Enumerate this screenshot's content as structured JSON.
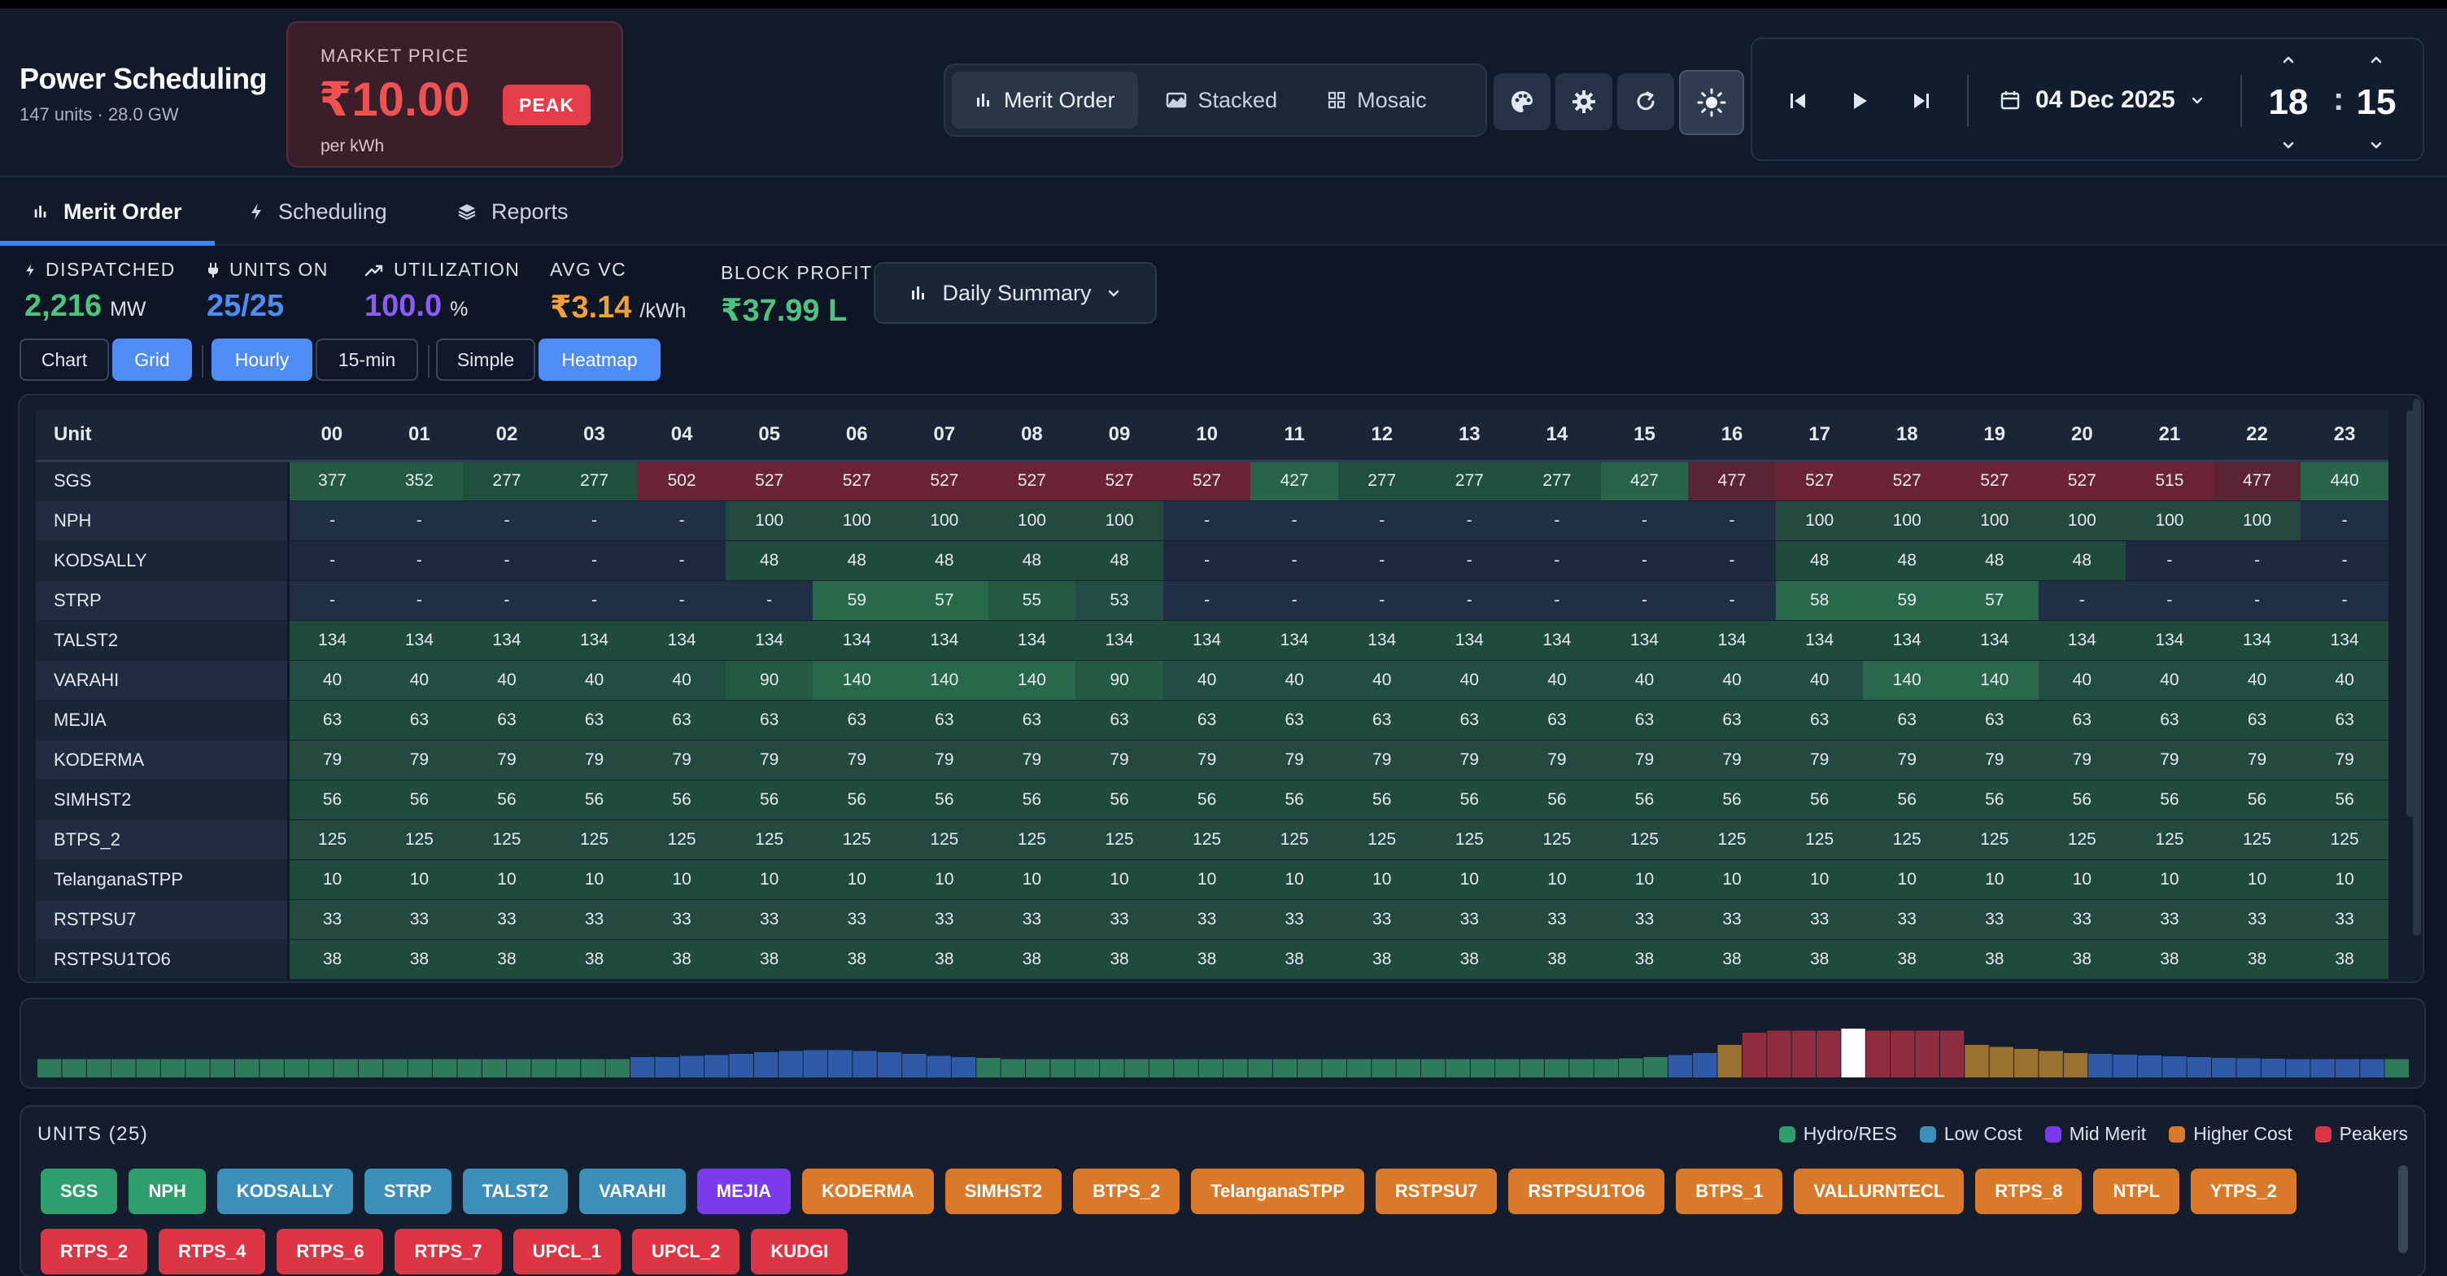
{
  "header": {
    "title": "Power Scheduling",
    "subtitle": "147 units · 28.0 GW",
    "market_label": "MARKET PRICE",
    "market_price": "₹10.00",
    "market_badge": "PEAK",
    "market_unit": "per kWh",
    "views": [
      {
        "label": "Merit Order",
        "icon": "bar-chart-icon"
      },
      {
        "label": "Stacked",
        "icon": "area-chart-icon"
      },
      {
        "label": "Mosaic",
        "icon": "grid-icon"
      }
    ],
    "date": "04 Dec 2025",
    "hour": "18",
    "minute": "15"
  },
  "tabs": [
    {
      "label": "Merit Order",
      "icon": "bar-chart-icon"
    },
    {
      "label": "Scheduling",
      "icon": "bolt-icon"
    },
    {
      "label": "Reports",
      "icon": "layers-icon"
    }
  ],
  "stats": {
    "dispatched_label": "DISPATCHED",
    "dispatched_value": "2,216",
    "dispatched_unit": "MW",
    "units_on_label": "UNITS ON",
    "units_on_value": "25/25",
    "utilization_label": "UTILIZATION",
    "utilization_value": "100.0",
    "utilization_unit": "%",
    "avg_vc_label": "AVG VC",
    "avg_vc_value": "₹3.14",
    "avg_vc_unit": "/kWh",
    "block_profit_label": "BLOCK PROFIT",
    "block_profit_value": "₹37.99 L",
    "summary_label": "Daily Summary"
  },
  "toggles": {
    "chart": "Chart",
    "grid": "Grid",
    "hourly": "Hourly",
    "quarter": "15-min",
    "simple": "Simple",
    "heatmap": "Heatmap"
  },
  "grid": {
    "unit_header": "Unit",
    "hours": [
      "00",
      "01",
      "02",
      "03",
      "04",
      "05",
      "06",
      "07",
      "08",
      "09",
      "10",
      "11",
      "12",
      "13",
      "14",
      "15",
      "16",
      "17",
      "18",
      "19",
      "20",
      "21",
      "22",
      "23"
    ],
    "rows": [
      {
        "unit": "SGS",
        "values": [
          "377",
          "352",
          "277",
          "277",
          "502",
          "527",
          "527",
          "527",
          "527",
          "527",
          "527",
          "427",
          "277",
          "277",
          "277",
          "427",
          "477",
          "527",
          "527",
          "527",
          "527",
          "515",
          "477",
          "440"
        ]
      },
      {
        "unit": "NPH",
        "values": [
          "-",
          "-",
          "-",
          "-",
          "-",
          "100",
          "100",
          "100",
          "100",
          "100",
          "-",
          "-",
          "-",
          "-",
          "-",
          "-",
          "-",
          "100",
          "100",
          "100",
          "100",
          "100",
          "100",
          "-"
        ]
      },
      {
        "unit": "KODSALLY",
        "values": [
          "-",
          "-",
          "-",
          "-",
          "-",
          "48",
          "48",
          "48",
          "48",
          "48",
          "-",
          "-",
          "-",
          "-",
          "-",
          "-",
          "-",
          "48",
          "48",
          "48",
          "48",
          "-",
          "-",
          "-"
        ]
      },
      {
        "unit": "STRP",
        "values": [
          "-",
          "-",
          "-",
          "-",
          "-",
          "-",
          "59",
          "57",
          "55",
          "53",
          "-",
          "-",
          "-",
          "-",
          "-",
          "-",
          "-",
          "58",
          "59",
          "57",
          "-",
          "-",
          "-",
          "-"
        ]
      },
      {
        "unit": "TALST2",
        "values": [
          "134",
          "134",
          "134",
          "134",
          "134",
          "134",
          "134",
          "134",
          "134",
          "134",
          "134",
          "134",
          "134",
          "134",
          "134",
          "134",
          "134",
          "134",
          "134",
          "134",
          "134",
          "134",
          "134",
          "134"
        ]
      },
      {
        "unit": "VARAHI",
        "values": [
          "40",
          "40",
          "40",
          "40",
          "40",
          "90",
          "140",
          "140",
          "140",
          "90",
          "40",
          "40",
          "40",
          "40",
          "40",
          "40",
          "40",
          "40",
          "140",
          "140",
          "40",
          "40",
          "40",
          "40"
        ]
      },
      {
        "unit": "MEJIA",
        "values": [
          "63",
          "63",
          "63",
          "63",
          "63",
          "63",
          "63",
          "63",
          "63",
          "63",
          "63",
          "63",
          "63",
          "63",
          "63",
          "63",
          "63",
          "63",
          "63",
          "63",
          "63",
          "63",
          "63",
          "63"
        ]
      },
      {
        "unit": "KODERMA",
        "values": [
          "79",
          "79",
          "79",
          "79",
          "79",
          "79",
          "79",
          "79",
          "79",
          "79",
          "79",
          "79",
          "79",
          "79",
          "79",
          "79",
          "79",
          "79",
          "79",
          "79",
          "79",
          "79",
          "79",
          "79"
        ]
      },
      {
        "unit": "SIMHST2",
        "values": [
          "56",
          "56",
          "56",
          "56",
          "56",
          "56",
          "56",
          "56",
          "56",
          "56",
          "56",
          "56",
          "56",
          "56",
          "56",
          "56",
          "56",
          "56",
          "56",
          "56",
          "56",
          "56",
          "56",
          "56"
        ]
      },
      {
        "unit": "BTPS_2",
        "values": [
          "125",
          "125",
          "125",
          "125",
          "125",
          "125",
          "125",
          "125",
          "125",
          "125",
          "125",
          "125",
          "125",
          "125",
          "125",
          "125",
          "125",
          "125",
          "125",
          "125",
          "125",
          "125",
          "125",
          "125"
        ]
      },
      {
        "unit": "TelanganaSTPP",
        "values": [
          "10",
          "10",
          "10",
          "10",
          "10",
          "10",
          "10",
          "10",
          "10",
          "10",
          "10",
          "10",
          "10",
          "10",
          "10",
          "10",
          "10",
          "10",
          "10",
          "10",
          "10",
          "10",
          "10",
          "10"
        ]
      },
      {
        "unit": "RSTPSU7",
        "values": [
          "33",
          "33",
          "33",
          "33",
          "33",
          "33",
          "33",
          "33",
          "33",
          "33",
          "33",
          "33",
          "33",
          "33",
          "33",
          "33",
          "33",
          "33",
          "33",
          "33",
          "33",
          "33",
          "33",
          "33"
        ]
      },
      {
        "unit": "RSTPSU1TO6",
        "values": [
          "38",
          "38",
          "38",
          "38",
          "38",
          "38",
          "38",
          "38",
          "38",
          "38",
          "38",
          "38",
          "38",
          "38",
          "38",
          "38",
          "38",
          "38",
          "38",
          "38",
          "38",
          "38",
          "38",
          "38"
        ]
      }
    ]
  },
  "price_strip": {
    "note": "96 quarter-hour blocks, relative price level 0-1 and band",
    "levels": [
      0.25,
      0.25,
      0.25,
      0.25,
      0.25,
      0.25,
      0.25,
      0.25,
      0.25,
      0.25,
      0.25,
      0.25,
      0.25,
      0.25,
      0.25,
      0.25,
      0.25,
      0.25,
      0.25,
      0.25,
      0.25,
      0.25,
      0.25,
      0.25,
      0.3,
      0.3,
      0.33,
      0.35,
      0.38,
      0.42,
      0.45,
      0.47,
      0.47,
      0.45,
      0.42,
      0.38,
      0.33,
      0.3,
      0.28,
      0.25,
      0.25,
      0.25,
      0.25,
      0.25,
      0.25,
      0.25,
      0.25,
      0.25,
      0.25,
      0.25,
      0.25,
      0.25,
      0.25,
      0.25,
      0.25,
      0.25,
      0.25,
      0.25,
      0.25,
      0.25,
      0.25,
      0.25,
      0.25,
      0.25,
      0.27,
      0.3,
      0.35,
      0.4,
      0.6,
      0.9,
      0.95,
      0.95,
      0.95,
      1.0,
      0.95,
      0.95,
      0.95,
      0.95,
      0.6,
      0.55,
      0.5,
      0.45,
      0.4,
      0.38,
      0.36,
      0.34,
      0.32,
      0.3,
      0.28,
      0.27,
      0.26,
      0.25,
      0.25,
      0.25,
      0.25,
      0.25
    ],
    "bands": [
      "g",
      "g",
      "g",
      "g",
      "g",
      "g",
      "g",
      "g",
      "g",
      "g",
      "g",
      "g",
      "g",
      "g",
      "g",
      "g",
      "g",
      "g",
      "g",
      "g",
      "g",
      "g",
      "g",
      "g",
      "b",
      "b",
      "b",
      "b",
      "b",
      "b",
      "b",
      "b",
      "b",
      "b",
      "b",
      "b",
      "b",
      "b",
      "g",
      "g",
      "g",
      "g",
      "g",
      "g",
      "g",
      "g",
      "g",
      "g",
      "g",
      "g",
      "g",
      "g",
      "g",
      "g",
      "g",
      "g",
      "g",
      "g",
      "g",
      "g",
      "g",
      "g",
      "g",
      "g",
      "g",
      "g",
      "b",
      "b",
      "o",
      "p",
      "p",
      "p",
      "p",
      "w",
      "p",
      "p",
      "p",
      "p",
      "o",
      "o",
      "o",
      "o",
      "o",
      "b",
      "b",
      "b",
      "b",
      "b",
      "b",
      "b",
      "b",
      "b",
      "b",
      "b",
      "b",
      "g"
    ],
    "colors": {
      "g": "#2f7a5b",
      "b": "#2e5aa8",
      "o": "#9a7130",
      "p": "#8d2d3f",
      "w": "#ffffff"
    }
  },
  "units_panel": {
    "title": "UNITS (25)",
    "legend": [
      {
        "label": "Hydro/RES",
        "color": "#2f9e6e"
      },
      {
        "label": "Low Cost",
        "color": "#3b8fb8"
      },
      {
        "label": "Mid Merit",
        "color": "#7c3aed"
      },
      {
        "label": "Higher Cost",
        "color": "#d97a2b"
      },
      {
        "label": "Peakers",
        "color": "#dc3545"
      }
    ],
    "chips": [
      {
        "name": "SGS",
        "color": "#2f9e6e"
      },
      {
        "name": "NPH",
        "color": "#2f9e6e"
      },
      {
        "name": "KODSALLY",
        "color": "#3b8fb8"
      },
      {
        "name": "STRP",
        "color": "#3b8fb8"
      },
      {
        "name": "TALST2",
        "color": "#3b8fb8"
      },
      {
        "name": "VARAHI",
        "color": "#3b8fb8"
      },
      {
        "name": "MEJIA",
        "color": "#7c3aed"
      },
      {
        "name": "KODERMA",
        "color": "#d97a2b"
      },
      {
        "name": "SIMHST2",
        "color": "#d97a2b"
      },
      {
        "name": "BTPS_2",
        "color": "#d97a2b"
      },
      {
        "name": "TelanganaSTPP",
        "color": "#d97a2b"
      },
      {
        "name": "RSTPSU7",
        "color": "#d97a2b"
      },
      {
        "name": "RSTPSU1TO6",
        "color": "#d97a2b"
      },
      {
        "name": "BTPS_1",
        "color": "#d97a2b"
      },
      {
        "name": "VALLURNTECL",
        "color": "#d97a2b"
      },
      {
        "name": "RTPS_8",
        "color": "#d97a2b"
      },
      {
        "name": "NTPL",
        "color": "#d97a2b"
      },
      {
        "name": "YTPS_2",
        "color": "#d97a2b"
      },
      {
        "name": "RTPS_2",
        "color": "#dc3545"
      },
      {
        "name": "RTPS_4",
        "color": "#dc3545"
      },
      {
        "name": "RTPS_6",
        "color": "#dc3545"
      },
      {
        "name": "RTPS_7",
        "color": "#dc3545"
      },
      {
        "name": "UPCL_1",
        "color": "#dc3545"
      },
      {
        "name": "UPCL_2",
        "color": "#dc3545"
      },
      {
        "name": "KUDGI",
        "color": "#dc3545"
      }
    ]
  }
}
